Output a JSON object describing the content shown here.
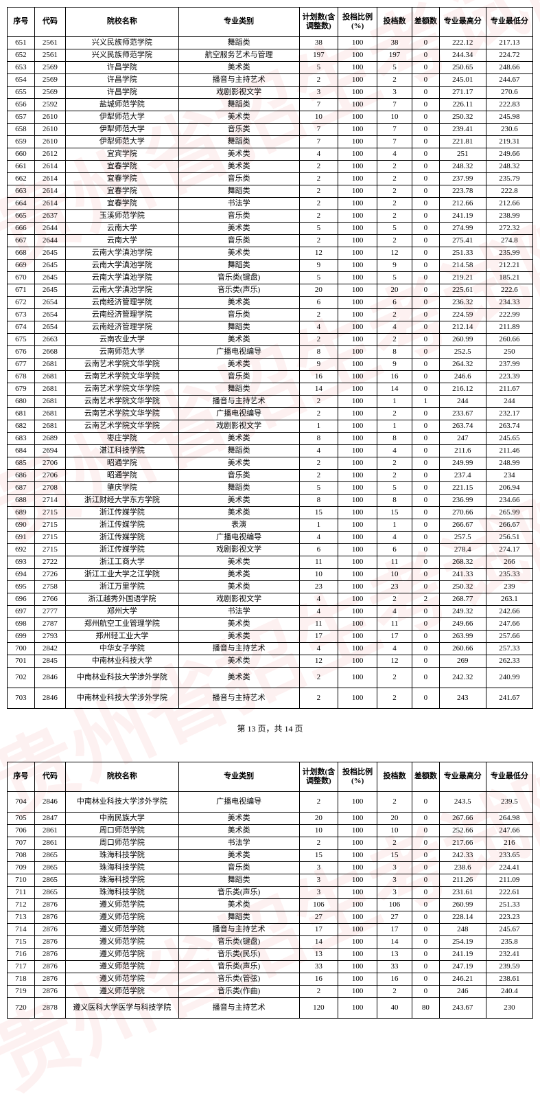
{
  "headers": {
    "seq": "序号",
    "code": "代码",
    "name": "院校名称",
    "major": "专业类别",
    "plan": "计划数(含调整数)",
    "ratio": "投档比例(%)",
    "toudang": "投档数",
    "diff": "差额数",
    "high": "专业最高分",
    "low": "专业最低分"
  },
  "page_label": "第 13 页，共 14 页",
  "watermark_text": "贵州省招生考试院",
  "rows1": [
    [
      "651",
      "2561",
      "兴义民族师范学院",
      "舞蹈类",
      "38",
      "100",
      "38",
      "0",
      "222.12",
      "217.13"
    ],
    [
      "652",
      "2561",
      "兴义民族师范学院",
      "航空服务艺术与管理",
      "197",
      "100",
      "197",
      "0",
      "244.34",
      "224.72"
    ],
    [
      "653",
      "2569",
      "许昌学院",
      "美术类",
      "5",
      "100",
      "5",
      "0",
      "250.65",
      "248.66"
    ],
    [
      "654",
      "2569",
      "许昌学院",
      "播音与主持艺术",
      "2",
      "100",
      "2",
      "0",
      "245.01",
      "244.67"
    ],
    [
      "655",
      "2569",
      "许昌学院",
      "戏剧影视文学",
      "3",
      "100",
      "3",
      "0",
      "271.17",
      "270.6"
    ],
    [
      "656",
      "2592",
      "盐城师范学院",
      "舞蹈类",
      "7",
      "100",
      "7",
      "0",
      "226.11",
      "222.83"
    ],
    [
      "657",
      "2610",
      "伊犁师范大学",
      "美术类",
      "10",
      "100",
      "10",
      "0",
      "250.32",
      "245.98"
    ],
    [
      "658",
      "2610",
      "伊犁师范大学",
      "音乐类",
      "7",
      "100",
      "7",
      "0",
      "239.41",
      "230.6"
    ],
    [
      "659",
      "2610",
      "伊犁师范大学",
      "舞蹈类",
      "7",
      "100",
      "7",
      "0",
      "221.81",
      "219.31"
    ],
    [
      "660",
      "2612",
      "宜宾学院",
      "美术类",
      "4",
      "100",
      "4",
      "0",
      "251",
      "249.66"
    ],
    [
      "661",
      "2614",
      "宜春学院",
      "美术类",
      "2",
      "100",
      "2",
      "0",
      "248.32",
      "248.32"
    ],
    [
      "662",
      "2614",
      "宜春学院",
      "音乐类",
      "2",
      "100",
      "2",
      "0",
      "237.99",
      "235.79"
    ],
    [
      "663",
      "2614",
      "宜春学院",
      "舞蹈类",
      "2",
      "100",
      "2",
      "0",
      "223.78",
      "222.8"
    ],
    [
      "664",
      "2614",
      "宜春学院",
      "书法学",
      "2",
      "100",
      "2",
      "0",
      "212.66",
      "212.66"
    ],
    [
      "665",
      "2637",
      "玉溪师范学院",
      "音乐类",
      "2",
      "100",
      "2",
      "0",
      "241.19",
      "238.99"
    ],
    [
      "666",
      "2644",
      "云南大学",
      "美术类",
      "5",
      "100",
      "5",
      "0",
      "274.99",
      "272.32"
    ],
    [
      "667",
      "2644",
      "云南大学",
      "音乐类",
      "2",
      "100",
      "2",
      "0",
      "275.41",
      "274.8"
    ],
    [
      "668",
      "2645",
      "云南大学滇池学院",
      "美术类",
      "12",
      "100",
      "12",
      "0",
      "251.33",
      "235.99"
    ],
    [
      "669",
      "2645",
      "云南大学滇池学院",
      "舞蹈类",
      "9",
      "100",
      "9",
      "0",
      "214.58",
      "212.21"
    ],
    [
      "670",
      "2645",
      "云南大学滇池学院",
      "音乐类(键盘)",
      "5",
      "100",
      "5",
      "0",
      "219.21",
      "185.21"
    ],
    [
      "671",
      "2645",
      "云南大学滇池学院",
      "音乐类(声乐)",
      "20",
      "100",
      "20",
      "0",
      "225.61",
      "222.6"
    ],
    [
      "672",
      "2654",
      "云南经济管理学院",
      "美术类",
      "6",
      "100",
      "6",
      "0",
      "236.32",
      "234.33"
    ],
    [
      "673",
      "2654",
      "云南经济管理学院",
      "音乐类",
      "2",
      "100",
      "2",
      "0",
      "224.59",
      "222.99"
    ],
    [
      "674",
      "2654",
      "云南经济管理学院",
      "舞蹈类",
      "4",
      "100",
      "4",
      "0",
      "212.14",
      "211.89"
    ],
    [
      "675",
      "2663",
      "云南农业大学",
      "美术类",
      "2",
      "100",
      "2",
      "0",
      "260.99",
      "260.66"
    ],
    [
      "676",
      "2668",
      "云南师范大学",
      "广播电视编导",
      "8",
      "100",
      "8",
      "0",
      "252.5",
      "250"
    ],
    [
      "677",
      "2681",
      "云南艺术学院文华学院",
      "美术类",
      "9",
      "100",
      "9",
      "0",
      "264.32",
      "237.99"
    ],
    [
      "678",
      "2681",
      "云南艺术学院文华学院",
      "音乐类",
      "16",
      "100",
      "16",
      "0",
      "246.6",
      "223.39"
    ],
    [
      "679",
      "2681",
      "云南艺术学院文华学院",
      "舞蹈类",
      "14",
      "100",
      "14",
      "0",
      "216.12",
      "211.67"
    ],
    [
      "680",
      "2681",
      "云南艺术学院文华学院",
      "播音与主持艺术",
      "2",
      "100",
      "1",
      "1",
      "244",
      "244"
    ],
    [
      "681",
      "2681",
      "云南艺术学院文华学院",
      "广播电视编导",
      "2",
      "100",
      "2",
      "0",
      "233.67",
      "232.17"
    ],
    [
      "682",
      "2681",
      "云南艺术学院文华学院",
      "戏剧影视文学",
      "1",
      "100",
      "1",
      "0",
      "263.74",
      "263.74"
    ],
    [
      "683",
      "2689",
      "枣庄学院",
      "美术类",
      "8",
      "100",
      "8",
      "0",
      "247",
      "245.65"
    ],
    [
      "684",
      "2694",
      "湛江科技学院",
      "舞蹈类",
      "4",
      "100",
      "4",
      "0",
      "211.6",
      "211.46"
    ],
    [
      "685",
      "2706",
      "昭通学院",
      "美术类",
      "2",
      "100",
      "2",
      "0",
      "249.99",
      "248.99"
    ],
    [
      "686",
      "2706",
      "昭通学院",
      "音乐类",
      "2",
      "100",
      "2",
      "0",
      "237.4",
      "234"
    ],
    [
      "687",
      "2708",
      "肇庆学院",
      "舞蹈类",
      "5",
      "100",
      "5",
      "0",
      "221.15",
      "206.94"
    ],
    [
      "688",
      "2714",
      "浙江财经大学东方学院",
      "美术类",
      "8",
      "100",
      "8",
      "0",
      "236.99",
      "234.66"
    ],
    [
      "689",
      "2715",
      "浙江传媒学院",
      "美术类",
      "15",
      "100",
      "15",
      "0",
      "270.66",
      "265.99"
    ],
    [
      "690",
      "2715",
      "浙江传媒学院",
      "表演",
      "1",
      "100",
      "1",
      "0",
      "266.67",
      "266.67"
    ],
    [
      "691",
      "2715",
      "浙江传媒学院",
      "广播电视编导",
      "4",
      "100",
      "4",
      "0",
      "257.5",
      "256.51"
    ],
    [
      "692",
      "2715",
      "浙江传媒学院",
      "戏剧影视文学",
      "6",
      "100",
      "6",
      "0",
      "278.4",
      "274.17"
    ],
    [
      "693",
      "2722",
      "浙江工商大学",
      "美术类",
      "11",
      "100",
      "11",
      "0",
      "268.32",
      "266"
    ],
    [
      "694",
      "2726",
      "浙江工业大学之江学院",
      "美术类",
      "10",
      "100",
      "10",
      "0",
      "241.33",
      "235.33"
    ],
    [
      "695",
      "2758",
      "浙江万里学院",
      "美术类",
      "23",
      "100",
      "23",
      "0",
      "250.32",
      "239"
    ],
    [
      "696",
      "2766",
      "浙江越秀外国语学院",
      "戏剧影视文学",
      "4",
      "100",
      "2",
      "2",
      "268.77",
      "263.1"
    ],
    [
      "697",
      "2777",
      "郑州大学",
      "书法学",
      "4",
      "100",
      "4",
      "0",
      "249.32",
      "242.66"
    ],
    [
      "698",
      "2787",
      "郑州航空工业管理学院",
      "美术类",
      "11",
      "100",
      "11",
      "0",
      "249.66",
      "247.66"
    ],
    [
      "699",
      "2793",
      "郑州轻工业大学",
      "美术类",
      "17",
      "100",
      "17",
      "0",
      "263.99",
      "257.66"
    ],
    [
      "700",
      "2842",
      "中华女子学院",
      "播音与主持艺术",
      "4",
      "100",
      "4",
      "0",
      "260.66",
      "257.33"
    ],
    [
      "701",
      "2845",
      "中南林业科技大学",
      "美术类",
      "12",
      "100",
      "12",
      "0",
      "269",
      "262.33"
    ]
  ],
  "rows1_tall": [
    [
      "702",
      "2846",
      "中南林业科技大学涉外学院",
      "美术类",
      "2",
      "100",
      "2",
      "0",
      "242.32",
      "240.99"
    ],
    [
      "703",
      "2846",
      "中南林业科技大学涉外学院",
      "播音与主持艺术",
      "2",
      "100",
      "2",
      "0",
      "243",
      "241.67"
    ]
  ],
  "rows2_tall_first": [
    [
      "704",
      "2846",
      "中南林业科技大学涉外学院",
      "广播电视编导",
      "2",
      "100",
      "2",
      "0",
      "243.5",
      "239.5"
    ]
  ],
  "rows2": [
    [
      "705",
      "2847",
      "中南民族大学",
      "美术类",
      "20",
      "100",
      "20",
      "0",
      "267.66",
      "264.98"
    ],
    [
      "706",
      "2861",
      "周口师范学院",
      "美术类",
      "10",
      "100",
      "10",
      "0",
      "252.66",
      "247.66"
    ],
    [
      "707",
      "2861",
      "周口师范学院",
      "书法学",
      "2",
      "100",
      "2",
      "0",
      "217.66",
      "216"
    ],
    [
      "708",
      "2865",
      "珠海科技学院",
      "美术类",
      "15",
      "100",
      "15",
      "0",
      "242.33",
      "233.65"
    ],
    [
      "709",
      "2865",
      "珠海科技学院",
      "音乐类",
      "3",
      "100",
      "3",
      "0",
      "238.6",
      "224.41"
    ],
    [
      "710",
      "2865",
      "珠海科技学院",
      "舞蹈类",
      "3",
      "100",
      "3",
      "0",
      "211.26",
      "211.09"
    ],
    [
      "711",
      "2865",
      "珠海科技学院",
      "音乐类(声乐)",
      "3",
      "100",
      "3",
      "0",
      "231.61",
      "222.61"
    ],
    [
      "712",
      "2876",
      "遵义师范学院",
      "美术类",
      "106",
      "100",
      "106",
      "0",
      "260.99",
      "251.33"
    ],
    [
      "713",
      "2876",
      "遵义师范学院",
      "舞蹈类",
      "27",
      "100",
      "27",
      "0",
      "228.14",
      "223.23"
    ],
    [
      "714",
      "2876",
      "遵义师范学院",
      "播音与主持艺术",
      "17",
      "100",
      "17",
      "0",
      "248",
      "245.67"
    ],
    [
      "715",
      "2876",
      "遵义师范学院",
      "音乐类(键盘)",
      "14",
      "100",
      "14",
      "0",
      "254.19",
      "235.8"
    ],
    [
      "716",
      "2876",
      "遵义师范学院",
      "音乐类(民乐)",
      "13",
      "100",
      "13",
      "0",
      "241.19",
      "232.41"
    ],
    [
      "717",
      "2876",
      "遵义师范学院",
      "音乐类(声乐)",
      "33",
      "100",
      "33",
      "0",
      "247.19",
      "239.59"
    ],
    [
      "718",
      "2876",
      "遵义师范学院",
      "音乐类(管弦)",
      "16",
      "100",
      "16",
      "0",
      "246.21",
      "238.61"
    ],
    [
      "719",
      "2876",
      "遵义师范学院",
      "音乐类(作曲)",
      "2",
      "100",
      "2",
      "0",
      "246",
      "240.4"
    ]
  ],
  "rows2_tall_last": [
    [
      "720",
      "2878",
      "遵义医科大学医学与科技学院",
      "播音与主持艺术",
      "120",
      "100",
      "40",
      "80",
      "243.67",
      "230"
    ]
  ]
}
